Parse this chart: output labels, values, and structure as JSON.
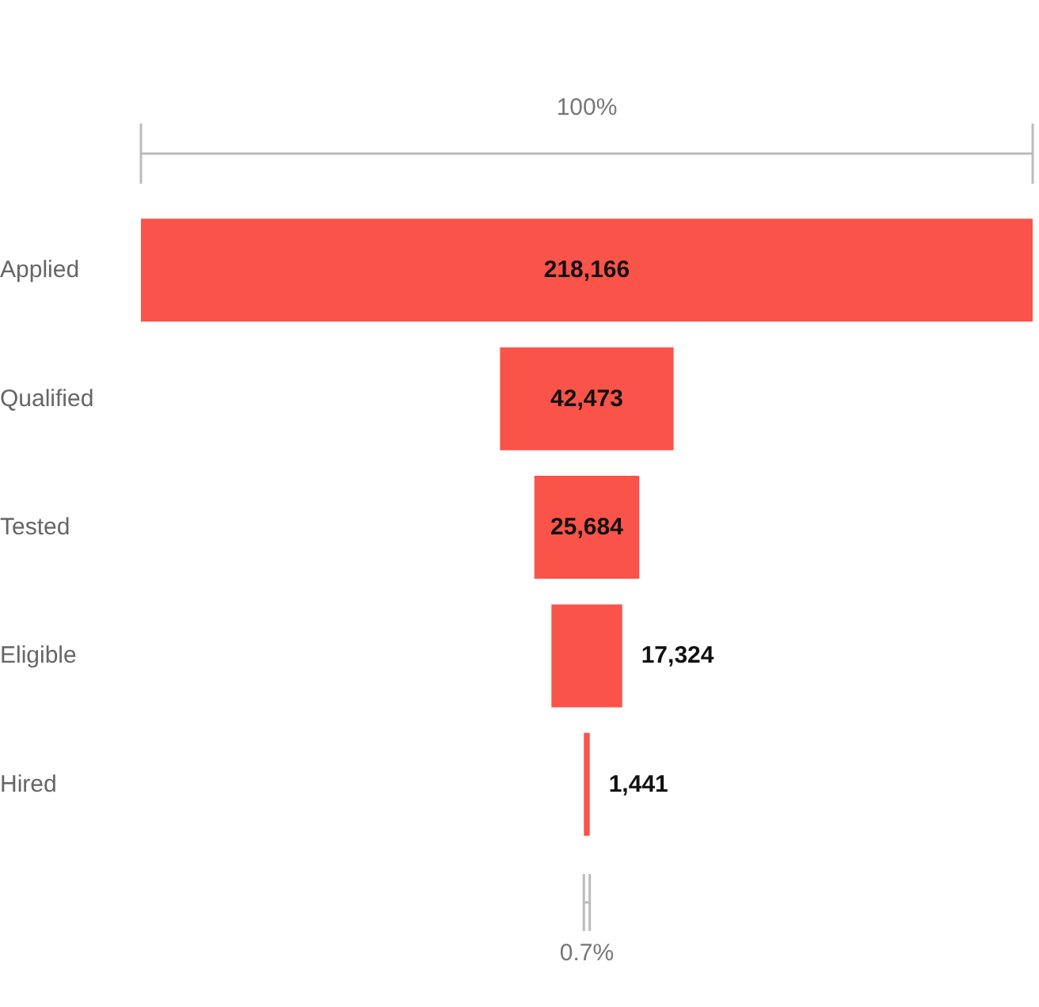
{
  "chart_data": {
    "type": "other",
    "categories": [
      "Applied",
      "Qualified",
      "Tested",
      "Eligible",
      "Hired"
    ],
    "values": [
      218166,
      42473,
      25684,
      17324,
      1441
    ],
    "color": "#f9534a",
    "value_labels": [
      "218,166",
      "42,473",
      "25,684",
      "17,324",
      "1,441"
    ],
    "annotations": [
      "100%",
      "0.7%"
    ]
  }
}
